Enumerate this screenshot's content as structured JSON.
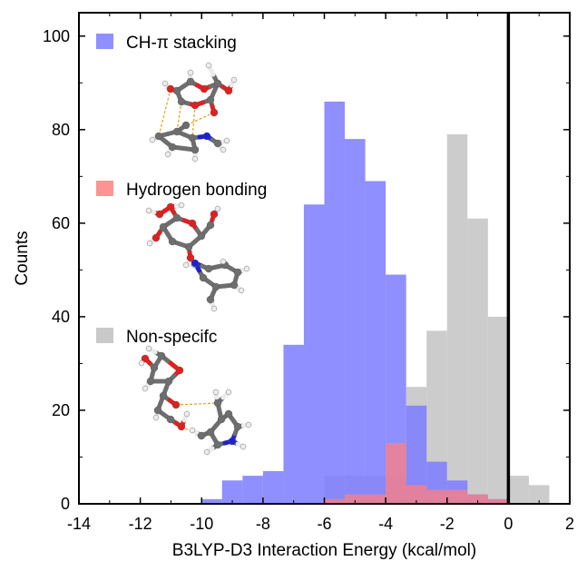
{
  "chart_data": {
    "type": "bar",
    "xlabel": "B3LYP-D3 Interaction Energy (kcal/mol)",
    "ylabel": "Counts",
    "xlim": [
      -14,
      2
    ],
    "ylim": [
      0,
      105
    ],
    "x_ticks": [
      -14,
      -12,
      -10,
      -8,
      -6,
      -4,
      -2,
      0,
      2
    ],
    "x_tick_labels": [
      "-14",
      "-12",
      "-10",
      "-8",
      "-6",
      "-4",
      "-2",
      "0",
      "2"
    ],
    "y_ticks": [
      0,
      20,
      40,
      60,
      80,
      100
    ],
    "y_tick_labels": [
      "0",
      "20",
      "40",
      "60",
      "80",
      "100"
    ],
    "bin_width": 0.667,
    "reference_line_x": 0,
    "legend_position": "left",
    "series": [
      {
        "name": "CH-π stacking",
        "color": "#7b7bff",
        "bins": [
          {
            "x": -10.0,
            "count": 1
          },
          {
            "x": -9.333,
            "count": 5
          },
          {
            "x": -8.667,
            "count": 6
          },
          {
            "x": -8.0,
            "count": 7
          },
          {
            "x": -7.333,
            "count": 34
          },
          {
            "x": -6.667,
            "count": 64
          },
          {
            "x": -6.0,
            "count": 86
          },
          {
            "x": -5.333,
            "count": 78
          },
          {
            "x": -4.667,
            "count": 69
          },
          {
            "x": -4.0,
            "count": 49
          },
          {
            "x": -3.333,
            "count": 21
          },
          {
            "x": -2.667,
            "count": 9
          },
          {
            "x": -2.0,
            "count": 5
          },
          {
            "x": -1.333,
            "count": 2
          },
          {
            "x": -0.667,
            "count": 1
          }
        ]
      },
      {
        "name": "Hydrogen bonding",
        "color": "#ff7f7f",
        "bins": [
          {
            "x": -6.0,
            "count": 1
          },
          {
            "x": -5.333,
            "count": 2
          },
          {
            "x": -4.667,
            "count": 2
          },
          {
            "x": -4.0,
            "count": 13
          },
          {
            "x": -3.333,
            "count": 4
          },
          {
            "x": -2.667,
            "count": 3
          },
          {
            "x": -2.0,
            "count": 3
          },
          {
            "x": -1.333,
            "count": 2
          },
          {
            "x": -0.667,
            "count": 1
          }
        ]
      },
      {
        "name": "Non-specifc",
        "color": "#bfbfbf",
        "bins": [
          {
            "x": -6.0,
            "count": 6
          },
          {
            "x": -5.333,
            "count": 6
          },
          {
            "x": -4.667,
            "count": 6
          },
          {
            "x": -4.0,
            "count": 6
          },
          {
            "x": -3.333,
            "count": 25
          },
          {
            "x": -2.667,
            "count": 37
          },
          {
            "x": -2.0,
            "count": 79
          },
          {
            "x": -1.333,
            "count": 61
          },
          {
            "x": -0.667,
            "count": 40
          },
          {
            "x": 0.0,
            "count": 6
          },
          {
            "x": 0.667,
            "count": 4
          }
        ]
      }
    ]
  }
}
